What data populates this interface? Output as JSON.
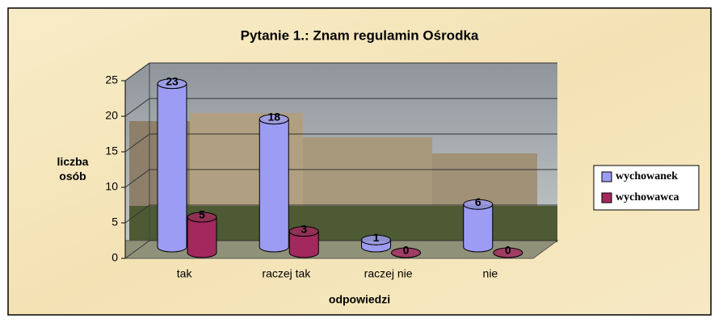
{
  "chart_data": {
    "type": "bar3d",
    "title": "Pytanie 1.:  Znam regulamin Ośrodka",
    "categories": [
      "tak",
      "raczej tak",
      "raczej nie",
      "nie"
    ],
    "series": [
      {
        "name": "wychowanek",
        "color": "#9c9cf5",
        "label_color": "#33ffff",
        "values": [
          23,
          18,
          1,
          6
        ]
      },
      {
        "name": "wychowawca",
        "color": "#a3285e",
        "label_color": "#ff33ff",
        "values": [
          5,
          3,
          0,
          0
        ]
      }
    ],
    "ylim": [
      0,
      25
    ],
    "yticks": [
      0,
      5,
      10,
      15,
      20,
      25
    ],
    "grid": true,
    "xlabel": "odpowiedzi",
    "ylabel": "liczba osób",
    "legend": "right"
  }
}
